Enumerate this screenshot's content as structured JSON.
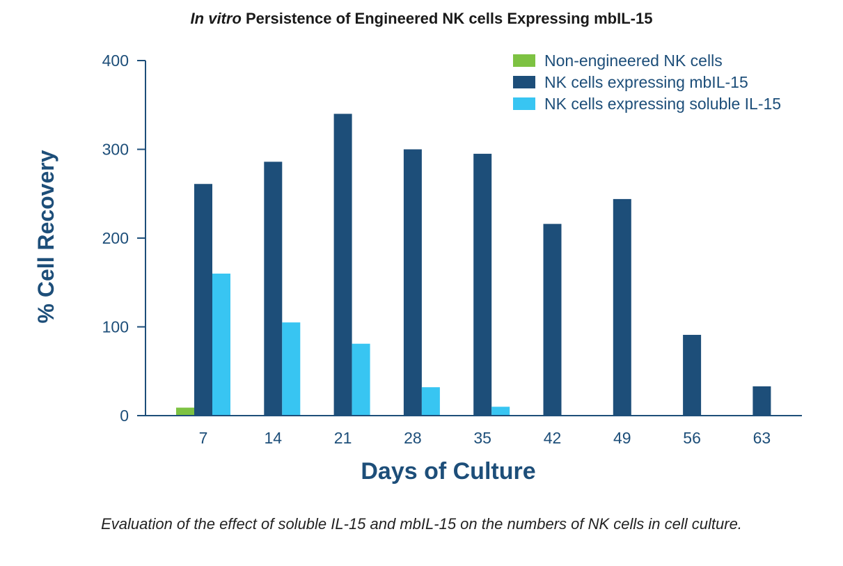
{
  "chart_data": {
    "type": "bar",
    "title_italic": "In vitro",
    "title_rest": " Persistence of Engineered NK cells Expressing mbIL-15",
    "xlabel": "Days of Culture",
    "ylabel": "% Cell Recovery",
    "categories": [
      "7",
      "14",
      "21",
      "28",
      "35",
      "42",
      "49",
      "56",
      "63"
    ],
    "ylim": [
      0,
      400
    ],
    "yticks": [
      "0",
      "100",
      "200",
      "300",
      "400"
    ],
    "legend_position": "top-right",
    "series": [
      {
        "name": "Non-engineered NK cells",
        "color": "#7dc242",
        "values": [
          9,
          null,
          null,
          null,
          null,
          null,
          null,
          null,
          null
        ]
      },
      {
        "name": "NK cells expressing mbIL-15",
        "color": "#1d4e79",
        "values": [
          261,
          286,
          340,
          300,
          295,
          216,
          244,
          91,
          33
        ]
      },
      {
        "name": "NK cells expressing soluble IL-15",
        "color": "#38c5f2",
        "values": [
          160,
          105,
          81,
          32,
          10,
          null,
          null,
          null,
          null
        ]
      }
    ],
    "caption": "Evaluation of the effect of soluble IL-15 and mbIL-15 on the numbers of NK cells in cell culture."
  },
  "colors": {
    "axis": "#1d4e79",
    "text": "#1d4e79"
  }
}
